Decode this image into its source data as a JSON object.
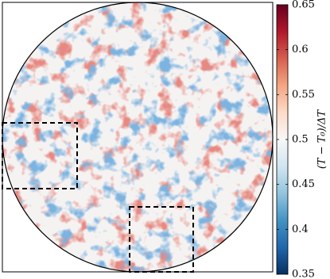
{
  "chart_data": {
    "type": "field",
    "colorbar_label": "(T − T₀)/ΔT",
    "clim": [
      0.35,
      0.65
    ],
    "cticks": [
      0.35,
      0.4,
      0.45,
      0.5,
      0.55,
      0.6,
      0.65
    ],
    "colormap": [
      "#053061",
      "#2166ac",
      "#4393c3",
      "#92c5de",
      "#d1e5f0",
      "#f7f7f7",
      "#fddbc7",
      "#f4a582",
      "#d6604d",
      "#b2182b",
      "#67001f"
    ]
  }
}
